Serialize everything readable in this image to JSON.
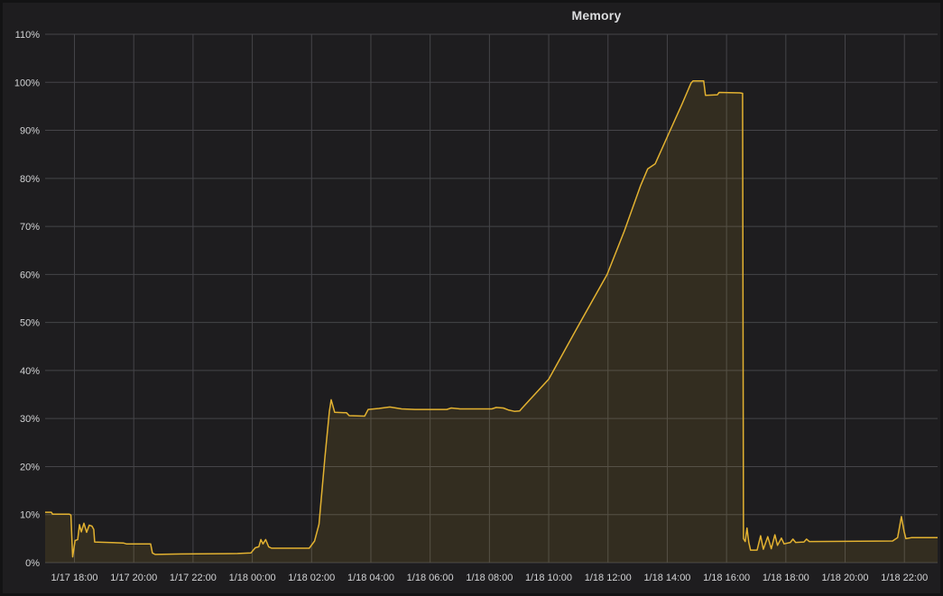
{
  "panel": {
    "title": "Memory",
    "background": "#1e1d1f",
    "border_color": "#131314"
  },
  "chart_data": {
    "type": "area",
    "title": "Memory",
    "ylabel": "",
    "xlabel": "",
    "ylim": [
      0,
      110
    ],
    "grid": true,
    "legend_position": "none",
    "grid_color": "#454549",
    "text_color": "#d2d3d5",
    "x_unit": "hours since 1/17 18:00",
    "x_range_hours": [
      -0.99,
      29.12
    ],
    "y_ticks": [
      {
        "value": 0,
        "label": "0%"
      },
      {
        "value": 10,
        "label": "10%"
      },
      {
        "value": 20,
        "label": "20%"
      },
      {
        "value": 30,
        "label": "30%"
      },
      {
        "value": 40,
        "label": "40%"
      },
      {
        "value": 50,
        "label": "50%"
      },
      {
        "value": 60,
        "label": "60%"
      },
      {
        "value": 70,
        "label": "70%"
      },
      {
        "value": 80,
        "label": "80%"
      },
      {
        "value": 90,
        "label": "90%"
      },
      {
        "value": 100,
        "label": "100%"
      },
      {
        "value": 110,
        "label": "110%"
      }
    ],
    "x_ticks": [
      {
        "hour": 0,
        "label": "1/17 18:00"
      },
      {
        "hour": 2,
        "label": "1/17 20:00"
      },
      {
        "hour": 4,
        "label": "1/17 22:00"
      },
      {
        "hour": 6,
        "label": "1/18 00:00"
      },
      {
        "hour": 8,
        "label": "1/18 02:00"
      },
      {
        "hour": 10,
        "label": "1/18 04:00"
      },
      {
        "hour": 12,
        "label": "1/18 06:00"
      },
      {
        "hour": 14,
        "label": "1/18 08:00"
      },
      {
        "hour": 16,
        "label": "1/18 10:00"
      },
      {
        "hour": 18,
        "label": "1/18 12:00"
      },
      {
        "hour": 20,
        "label": "1/18 14:00"
      },
      {
        "hour": 22,
        "label": "1/18 16:00"
      },
      {
        "hour": 24,
        "label": "1/18 18:00"
      },
      {
        "hour": 26,
        "label": "1/18 20:00"
      },
      {
        "hour": 28,
        "label": "1/18 22:00"
      }
    ],
    "series": [
      {
        "name": "Memory",
        "line_color": "#e3b231",
        "fill_color": "#e3b231",
        "fill_opacity": 0.11,
        "line_width": 1.5,
        "points": [
          [
            -0.99,
            10.5
          ],
          [
            -0.78,
            10.5
          ],
          [
            -0.74,
            10.1
          ],
          [
            -0.17,
            10.1
          ],
          [
            -0.12,
            9.9
          ],
          [
            -0.06,
            1.2
          ],
          [
            0.02,
            4.6
          ],
          [
            0.11,
            4.8
          ],
          [
            0.17,
            7.9
          ],
          [
            0.23,
            6.4
          ],
          [
            0.32,
            8.2
          ],
          [
            0.41,
            6.3
          ],
          [
            0.5,
            7.8
          ],
          [
            0.59,
            7.6
          ],
          [
            0.65,
            6.9
          ],
          [
            0.68,
            4.3
          ],
          [
            1.65,
            4.1
          ],
          [
            1.75,
            3.9
          ],
          [
            2.57,
            3.9
          ],
          [
            2.63,
            2.0
          ],
          [
            2.72,
            1.7
          ],
          [
            3.6,
            1.8
          ],
          [
            5.5,
            1.9
          ],
          [
            5.95,
            2.0
          ],
          [
            6.1,
            3.1
          ],
          [
            6.22,
            3.3
          ],
          [
            6.29,
            4.8
          ],
          [
            6.36,
            3.9
          ],
          [
            6.45,
            4.8
          ],
          [
            6.55,
            3.3
          ],
          [
            6.65,
            3.0
          ],
          [
            7.92,
            3.0
          ],
          [
            8.1,
            4.5
          ],
          [
            8.25,
            8.0
          ],
          [
            8.45,
            22.0
          ],
          [
            8.6,
            31.5
          ],
          [
            8.66,
            33.9
          ],
          [
            8.78,
            31.3
          ],
          [
            9.18,
            31.2
          ],
          [
            9.27,
            30.6
          ],
          [
            9.79,
            30.5
          ],
          [
            9.91,
            31.9
          ],
          [
            10.27,
            32.1
          ],
          [
            10.64,
            32.4
          ],
          [
            11.04,
            32.0
          ],
          [
            11.49,
            31.9
          ],
          [
            12.56,
            31.9
          ],
          [
            12.71,
            32.2
          ],
          [
            13.01,
            32.0
          ],
          [
            14.08,
            32.0
          ],
          [
            14.23,
            32.3
          ],
          [
            14.47,
            32.2
          ],
          [
            14.63,
            31.8
          ],
          [
            14.84,
            31.5
          ],
          [
            15.02,
            31.6
          ],
          [
            15.08,
            32.0
          ],
          [
            15.3,
            33.5
          ],
          [
            16.0,
            38.2
          ],
          [
            17.06,
            50.0
          ],
          [
            17.97,
            60.0
          ],
          [
            18.55,
            69.0
          ],
          [
            19.1,
            78.5
          ],
          [
            19.34,
            82.0
          ],
          [
            19.59,
            83.0
          ],
          [
            20.1,
            90.0
          ],
          [
            20.5,
            95.5
          ],
          [
            20.8,
            99.8
          ],
          [
            20.87,
            100.3
          ],
          [
            21.23,
            100.3
          ],
          [
            21.29,
            97.3
          ],
          [
            21.69,
            97.4
          ],
          [
            21.75,
            97.9
          ],
          [
            22.45,
            97.8
          ],
          [
            22.54,
            97.7
          ],
          [
            22.57,
            5.0
          ],
          [
            22.63,
            4.4
          ],
          [
            22.69,
            7.2
          ],
          [
            22.75,
            4.2
          ],
          [
            22.81,
            2.6
          ],
          [
            23.03,
            2.6
          ],
          [
            23.15,
            5.6
          ],
          [
            23.24,
            2.8
          ],
          [
            23.39,
            5.4
          ],
          [
            23.51,
            2.9
          ],
          [
            23.63,
            5.8
          ],
          [
            23.72,
            3.6
          ],
          [
            23.85,
            5.1
          ],
          [
            23.94,
            3.9
          ],
          [
            24.15,
            4.2
          ],
          [
            24.24,
            4.9
          ],
          [
            24.33,
            4.2
          ],
          [
            24.61,
            4.3
          ],
          [
            24.7,
            4.9
          ],
          [
            24.79,
            4.4
          ],
          [
            27.6,
            4.5
          ],
          [
            27.77,
            5.2
          ],
          [
            27.9,
            9.6
          ],
          [
            27.99,
            6.5
          ],
          [
            28.05,
            5.0
          ],
          [
            28.23,
            5.2
          ],
          [
            29.12,
            5.2
          ]
        ]
      }
    ]
  }
}
